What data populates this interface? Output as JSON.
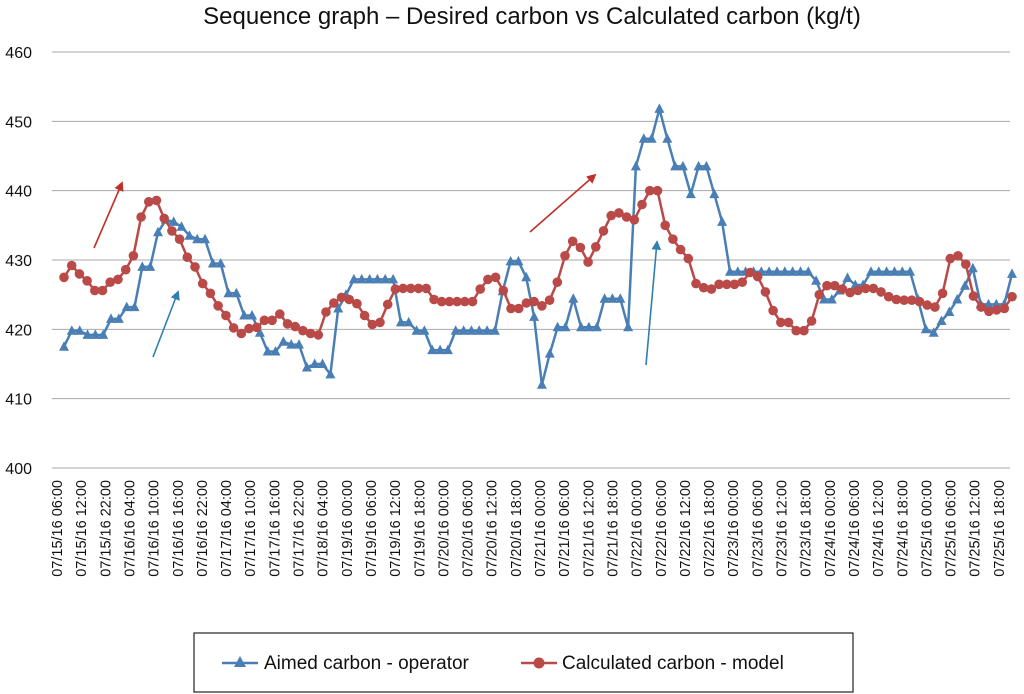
{
  "chart_data": {
    "type": "line",
    "title": "Sequence graph – Desired carbon vs Calculated carbon (kg/t)",
    "xlabel": "",
    "ylabel": "",
    "ylim": [
      400,
      460
    ],
    "yticks": [
      400,
      410,
      420,
      430,
      440,
      450,
      460
    ],
    "grid": true,
    "legend_position": "bottom",
    "x_tick_labels": [
      "07/15/16 06:00",
      "07/15/16 12:00",
      "07/15/16 22:00",
      "07/16/16 04:00",
      "07/16/16 10:00",
      "07/16/16 16:00",
      "07/16/16 22:00",
      "07/17/16 04:00",
      "07/17/16 10:00",
      "07/17/16 16:00",
      "07/17/16 22:00",
      "07/18/16 04:00",
      "07/19/16 00:00",
      "07/19/16 06:00",
      "07/19/16 12:00",
      "07/19/16 18:00",
      "07/20/16 00:00",
      "07/20/16 06:00",
      "07/20/16 12:00",
      "07/20/16 18:00",
      "07/21/16 00:00",
      "07/21/16 06:00",
      "07/21/16 12:00",
      "07/21/16 18:00",
      "07/22/16 00:00",
      "07/22/16 06:00",
      "07/22/16 12:00",
      "07/22/16 18:00",
      "07/23/16 00:00",
      "07/23/16 06:00",
      "07/23/16 12:00",
      "07/23/16 18:00",
      "07/24/16 00:00",
      "07/24/16 06:00",
      "07/24/16 12:00",
      "07/24/16 18:00",
      "07/25/16 00:00",
      "07/25/16 06:00",
      "07/25/16 12:00",
      "07/25/16 18:00"
    ],
    "series": [
      {
        "name": "Aimed carbon - operator",
        "color": "#4a7fb5",
        "marker": "triangle",
        "values": [
          417.5,
          419.8,
          419.8,
          419.2,
          419.2,
          419.2,
          421.5,
          421.5,
          423.2,
          423.2,
          429,
          429,
          434,
          435.8,
          435.5,
          434.8,
          433.5,
          433,
          433,
          429.5,
          429.5,
          425.2,
          425.2,
          422,
          422,
          419.5,
          416.8,
          416.8,
          418.2,
          417.8,
          417.8,
          414.5,
          415,
          415,
          413.5,
          423,
          425,
          427.2,
          427.2,
          427.2,
          427.2,
          427.2,
          427.2,
          421,
          421,
          419.8,
          419.8,
          417,
          417,
          417,
          419.8,
          419.8,
          419.8,
          419.8,
          419.8,
          419.8,
          425.5,
          429.8,
          429.8,
          427.5,
          421.8,
          412,
          416.5,
          420.3,
          420.3,
          424.4,
          420.3,
          420.3,
          420.3,
          424.4,
          424.4,
          424.4,
          420.3,
          443.5,
          447.5,
          447.5,
          451.8,
          447.5,
          443.5,
          443.5,
          439.5,
          443.5,
          443.5,
          439.5,
          435.5,
          428.3,
          428.3,
          428.3,
          428.3,
          428.3,
          428.3,
          428.3,
          428.3,
          428.3,
          428.3,
          428.3,
          427,
          424.3,
          424.3,
          425.6,
          427.4,
          426.4,
          426.4,
          428.3,
          428.3,
          428.3,
          428.3,
          428.3,
          428.3,
          424.3,
          420,
          419.5,
          421.2,
          422.5,
          424.3,
          426.3,
          428.8,
          423.6,
          423.6,
          423.6,
          423.6,
          428
        ]
      },
      {
        "name": "Calculated carbon - model",
        "color": "#b94a48",
        "marker": "circle",
        "values": [
          427.5,
          429.2,
          428,
          427,
          425.6,
          425.6,
          426.8,
          427.2,
          428.6,
          430.6,
          436.2,
          438.4,
          438.6,
          436,
          434.2,
          433,
          430.4,
          429,
          426.6,
          425.2,
          423.4,
          422,
          420.2,
          419.4,
          420.1,
          420.3,
          421.3,
          421.3,
          422.2,
          420.8,
          420.4,
          419.8,
          419.4,
          419.2,
          422.5,
          423.8,
          424.6,
          424.3,
          423.7,
          422,
          420.7,
          421,
          423.6,
          425.8,
          425.9,
          425.9,
          425.9,
          425.9,
          424.3,
          424,
          424,
          424,
          424,
          424,
          425.8,
          427.2,
          427.5,
          425.6,
          423,
          423,
          423.8,
          424,
          423.4,
          424.2,
          426.8,
          430.6,
          432.7,
          431.8,
          429.7,
          431.9,
          434.2,
          436.4,
          436.8,
          436.2,
          435.8,
          438,
          440,
          440,
          435,
          433,
          431.5,
          430.2,
          426.6,
          426,
          425.8,
          426.5,
          426.5,
          426.5,
          426.8,
          428.2,
          427.6,
          425.4,
          422.7,
          421,
          421,
          419.8,
          419.8,
          421.2,
          425,
          426.3,
          426.3,
          425.8,
          425.3,
          425.6,
          425.9,
          425.9,
          425.4,
          424.7,
          424.3,
          424.2,
          424.2,
          424,
          423.5,
          423.2,
          425.2,
          430.2,
          430.6,
          429.4,
          424.8,
          423.2,
          422.6,
          422.8,
          423,
          424.7
        ]
      }
    ]
  }
}
